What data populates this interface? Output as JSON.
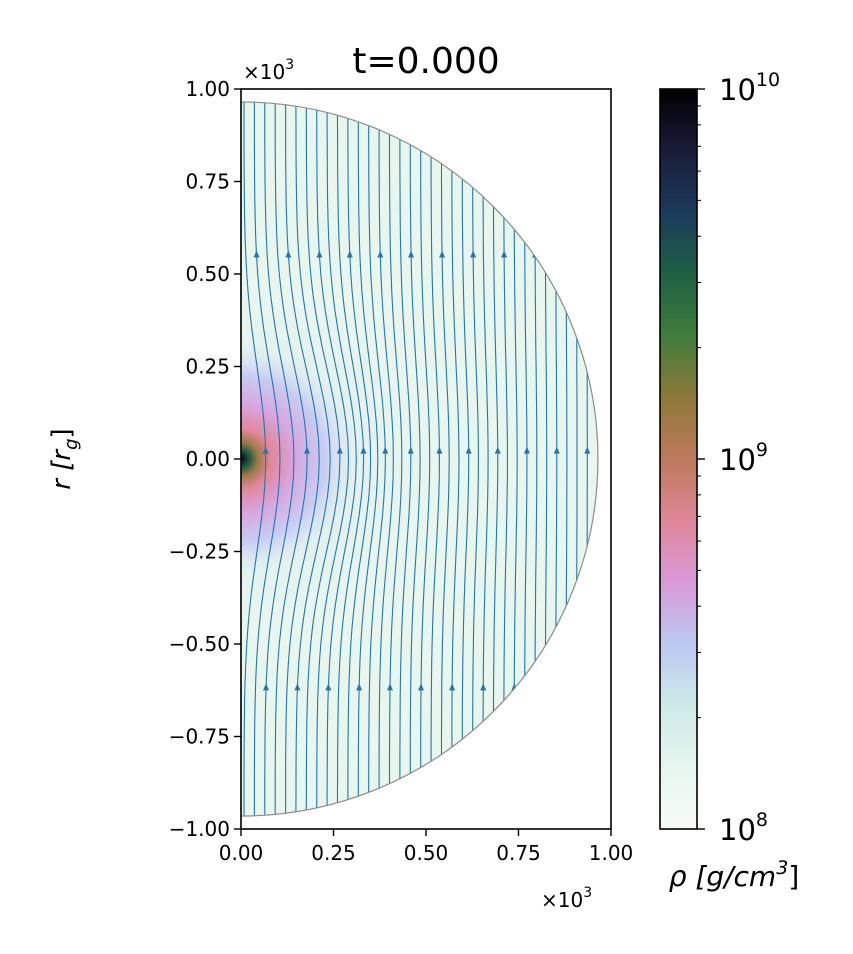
{
  "chart_data": {
    "type": "heatmap",
    "subtype": "half-disk density map with magnetic field streamlines",
    "title": "t=0.000",
    "xlabel": "",
    "ylabel": "r [r_g]",
    "ylabel_main": "r [r",
    "ylabel_sub": "g",
    "ylabel_close": "]",
    "x_multiplier": "×10",
    "y_multiplier": "×10",
    "multiplier_exp": "3",
    "xlim": [
      0.0,
      1.0
    ],
    "ylim": [
      -1.0,
      1.0
    ],
    "x_tick_values": [
      0.0,
      0.25,
      0.5,
      0.75,
      1.0
    ],
    "x_ticks": [
      "0.00",
      "0.25",
      "0.50",
      "0.75",
      "1.00"
    ],
    "y_tick_values": [
      1.0,
      0.75,
      0.5,
      0.25,
      0.0,
      -0.25,
      -0.5,
      -0.75,
      -1.0
    ],
    "y_ticks": [
      "1.00",
      "0.75",
      "0.50",
      "0.25",
      "0.00",
      "−0.25",
      "−0.50",
      "−0.75",
      "−1.00"
    ],
    "domain_outer_radius": 0.965,
    "colorbar": {
      "label": "ρ [g/cm³]",
      "label_main": "ρ [g/cm",
      "label_exp": "3",
      "label_close": "]",
      "scale": "log",
      "range": [
        100000000.0,
        10000000000.0
      ],
      "ticks": [
        {
          "value": 10000000000.0,
          "base": "10",
          "exp": "10"
        },
        {
          "value": 1000000000.0,
          "base": "10",
          "exp": "9"
        },
        {
          "value": 100000000.0,
          "base": "10",
          "exp": "8"
        }
      ],
      "colormap": [
        "#f7fcf5",
        "#e6f6ef",
        "#cdeae8",
        "#bcc8f0",
        "#d89ad8",
        "#e0869a",
        "#bd7a5c",
        "#8d7a3a",
        "#3f7d3c",
        "#1f6045",
        "#1c3a5c",
        "#1a1c38",
        "#000000"
      ]
    },
    "streamline_color": "#1f77b4",
    "boundary_color": "#8c8c8c"
  }
}
